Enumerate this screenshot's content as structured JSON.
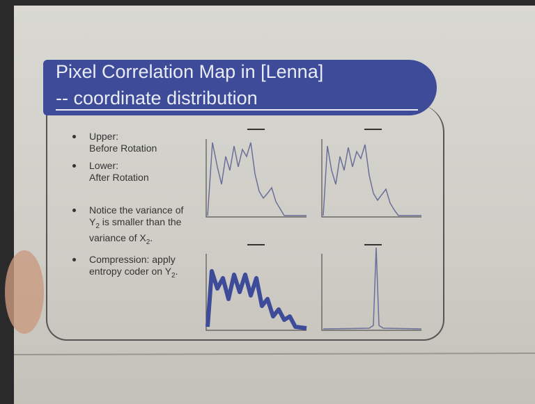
{
  "slide": {
    "title": "Pixel Correlation Map in [Lenna]",
    "subtitle": "-- coordinate distribution",
    "bullets": [
      {
        "lines": [
          "Upper:",
          "Before Rotation"
        ]
      },
      {
        "lines": [
          "Lower:",
          "After Rotation"
        ]
      },
      {
        "parts": [
          "Notice the variance of Y",
          "2",
          " is smaller than the variance of X",
          "2",
          "."
        ]
      },
      {
        "parts": [
          "Compression: apply entropy coder on Y",
          "2",
          "."
        ]
      }
    ]
  }
}
